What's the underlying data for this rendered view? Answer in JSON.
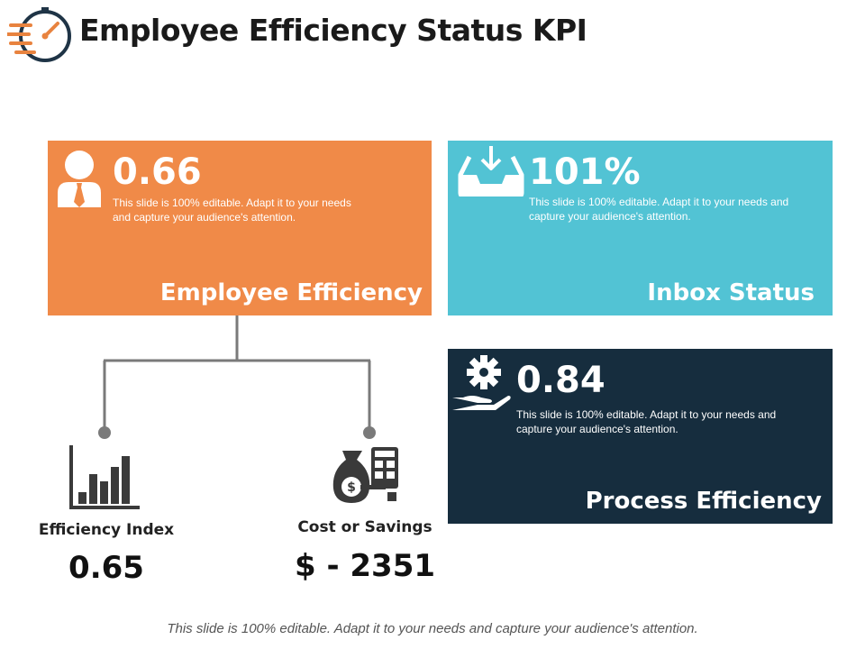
{
  "page": {
    "title": "Employee Efficiency Status KPI",
    "footer": "This slide is 100% editable. Adapt it to your needs and capture your audience's attention."
  },
  "cards": {
    "employee_efficiency": {
      "value": "0.66",
      "description": "This slide is 100% editable. Adapt it to your needs and capture your audience's attention.",
      "label": "Employee Efficiency",
      "icon": "employee-icon",
      "color": "#f08a48"
    },
    "inbox_status": {
      "value": "101%",
      "description": "This slide is 100% editable. Adapt it to your needs and capture your audience's attention.",
      "label": "Inbox Status",
      "icon": "inbox-icon",
      "color": "#52c3d4"
    },
    "process_efficiency": {
      "value": "0.84",
      "description": "This slide is 100% editable. Adapt it to your needs and capture your audience's attention.",
      "label": "Process Efficiency",
      "icon": "gear-hand-icon",
      "color": "#162d3e"
    }
  },
  "metrics": {
    "efficiency_index": {
      "label": "Efficiency Index",
      "value": "0.65",
      "icon": "bar-chart-icon"
    },
    "cost_or_savings": {
      "label": "Cost or Savings",
      "value": "$ - 2351",
      "icon": "money-bag-calculator-icon"
    }
  }
}
